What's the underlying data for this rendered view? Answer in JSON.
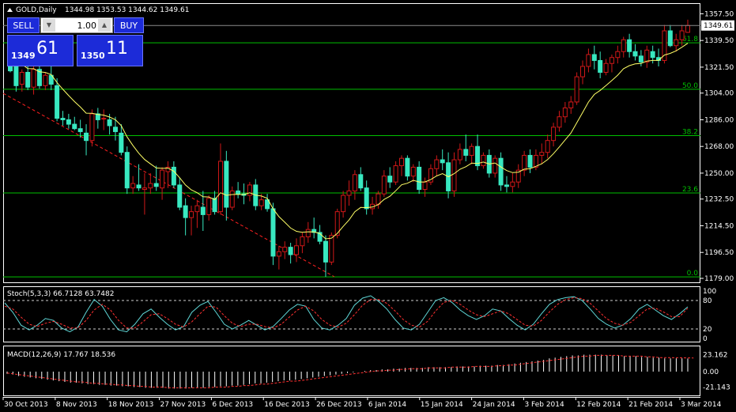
{
  "window": {
    "title_icon": "triangle-up-icon",
    "title": "GOLD,Daily",
    "ohlc": "1344.98 1353.53 1344.62 1349.61"
  },
  "trade_panel": {
    "sell_label": "SELL",
    "buy_label": "BUY",
    "lots": "1.00",
    "down_icon": "arrow-down-icon",
    "up_icon": "arrow-up-icon",
    "bid_small": "1349",
    "bid_big": "61",
    "ask_small": "1350",
    "ask_big": "11"
  },
  "chart_data": [
    {
      "type": "candlestick",
      "title": "GOLD,Daily",
      "price_axis": [
        "1357.50",
        "1339.50",
        "1321.50",
        "1304.00",
        "1286.00",
        "1268.00",
        "1250.00",
        "1232.50",
        "1214.50",
        "1196.50",
        "1179.00"
      ],
      "ylim": [
        1179,
        1362
      ],
      "date_labels": [
        "30 Oct 2013",
        "8 Nov 2013",
        "18 Nov 2013",
        "27 Nov 2013",
        "6 Dec 2013",
        "16 Dec 2013",
        "26 Dec 2013",
        "6 Jan 2014",
        "15 Jan 2014",
        "24 Jan 2014",
        "3 Feb 2014",
        "12 Feb 2014",
        "21 Feb 2014",
        "3 Mar 2014"
      ],
      "last_price": "1349.61",
      "fib_levels": [
        {
          "label": "61.8",
          "value": 1337.9
        },
        {
          "label": "50.0",
          "value": 1306.6
        },
        {
          "label": "38.2",
          "value": 1275.3
        },
        {
          "label": "23.6",
          "value": 1236.6
        },
        {
          "label": "0.0",
          "value": 1180.0
        }
      ],
      "candles": [
        [
          1325,
          1328,
          1318,
          1319
        ],
        [
          1324,
          1326,
          1305,
          1309
        ],
        [
          1310,
          1320,
          1305,
          1318
        ],
        [
          1318,
          1325,
          1306,
          1308
        ],
        [
          1308,
          1322,
          1303,
          1320
        ],
        [
          1320,
          1324,
          1307,
          1309
        ],
        [
          1309,
          1318,
          1306,
          1316
        ],
        [
          1316,
          1328,
          1306,
          1310
        ],
        [
          1309,
          1314,
          1285,
          1287
        ],
        [
          1287,
          1292,
          1282,
          1286
        ],
        [
          1286,
          1290,
          1280,
          1283
        ],
        [
          1283,
          1288,
          1279,
          1280
        ],
        [
          1280,
          1286,
          1274,
          1278
        ],
        [
          1277,
          1283,
          1262,
          1272
        ],
        [
          1272,
          1293,
          1268,
          1290
        ],
        [
          1290,
          1294,
          1280,
          1286
        ],
        [
          1287,
          1293,
          1279,
          1287
        ],
        [
          1286,
          1290,
          1276,
          1282
        ],
        [
          1281,
          1288,
          1272,
          1278
        ],
        [
          1277,
          1283,
          1262,
          1264
        ],
        [
          1264,
          1268,
          1236,
          1240
        ],
        [
          1240,
          1248,
          1236,
          1243
        ],
        [
          1242,
          1256,
          1238,
          1240
        ],
        [
          1239,
          1250,
          1222,
          1240
        ],
        [
          1240,
          1250,
          1236,
          1243
        ],
        [
          1243,
          1255,
          1238,
          1241
        ],
        [
          1240,
          1254,
          1232,
          1252
        ],
        [
          1251,
          1258,
          1240,
          1254
        ],
        [
          1254,
          1258,
          1240,
          1242
        ],
        [
          1242,
          1247,
          1225,
          1227
        ],
        [
          1228,
          1233,
          1208,
          1220
        ],
        [
          1220,
          1228,
          1208,
          1224
        ],
        [
          1224,
          1232,
          1213,
          1228
        ],
        [
          1227,
          1238,
          1211,
          1222
        ],
        [
          1222,
          1235,
          1218,
          1233
        ],
        [
          1233,
          1238,
          1222,
          1224
        ],
        [
          1224,
          1270,
          1222,
          1258
        ],
        [
          1258,
          1265,
          1218,
          1227
        ],
        [
          1227,
          1241,
          1225,
          1238
        ],
        [
          1238,
          1244,
          1233,
          1236
        ],
        [
          1236,
          1243,
          1229,
          1235
        ],
        [
          1235,
          1244,
          1231,
          1242
        ],
        [
          1242,
          1246,
          1225,
          1228
        ],
        [
          1228,
          1236,
          1225,
          1232
        ],
        [
          1232,
          1236,
          1224,
          1226
        ],
        [
          1226,
          1230,
          1188,
          1194
        ],
        [
          1194,
          1201,
          1185,
          1197
        ],
        [
          1197,
          1204,
          1192,
          1200
        ],
        [
          1200,
          1203,
          1189,
          1195
        ],
        [
          1195,
          1206,
          1190,
          1201
        ],
        [
          1201,
          1210,
          1196,
          1207
        ],
        [
          1207,
          1217,
          1203,
          1212
        ],
        [
          1212,
          1220,
          1206,
          1210
        ],
        [
          1210,
          1215,
          1202,
          1204
        ],
        [
          1204,
          1208,
          1180,
          1190
        ],
        [
          1190,
          1210,
          1188,
          1208
        ],
        [
          1208,
          1226,
          1206,
          1224
        ],
        [
          1224,
          1238,
          1220,
          1235
        ],
        [
          1235,
          1245,
          1228,
          1238
        ],
        [
          1238,
          1252,
          1232,
          1249
        ],
        [
          1249,
          1254,
          1238,
          1240
        ],
        [
          1240,
          1245,
          1222,
          1226
        ],
        [
          1226,
          1234,
          1222,
          1229
        ],
        [
          1229,
          1238,
          1226,
          1236
        ],
        [
          1236,
          1252,
          1234,
          1248
        ],
        [
          1248,
          1254,
          1240,
          1244
        ],
        [
          1244,
          1258,
          1242,
          1255
        ],
        [
          1255,
          1262,
          1248,
          1260
        ],
        [
          1260,
          1262,
          1245,
          1248
        ],
        [
          1248,
          1256,
          1244,
          1254
        ],
        [
          1254,
          1258,
          1236,
          1239
        ],
        [
          1239,
          1247,
          1234,
          1244
        ],
        [
          1244,
          1256,
          1242,
          1253
        ],
        [
          1253,
          1262,
          1248,
          1259
        ],
        [
          1259,
          1266,
          1252,
          1257
        ],
        [
          1257,
          1264,
          1233,
          1238
        ],
        [
          1238,
          1264,
          1234,
          1259
        ],
        [
          1259,
          1270,
          1256,
          1266
        ],
        [
          1266,
          1276,
          1258,
          1262
        ],
        [
          1262,
          1270,
          1256,
          1268
        ],
        [
          1268,
          1276,
          1252,
          1255
        ],
        [
          1255,
          1264,
          1253,
          1262
        ],
        [
          1262,
          1266,
          1247,
          1250
        ],
        [
          1250,
          1262,
          1247,
          1260
        ],
        [
          1260,
          1264,
          1238,
          1242
        ],
        [
          1242,
          1248,
          1237,
          1241
        ],
        [
          1241,
          1250,
          1237,
          1244
        ],
        [
          1244,
          1256,
          1240,
          1252
        ],
        [
          1252,
          1265,
          1248,
          1262
        ],
        [
          1262,
          1266,
          1250,
          1254
        ],
        [
          1254,
          1266,
          1252,
          1262
        ],
        [
          1262,
          1270,
          1256,
          1264
        ],
        [
          1264,
          1276,
          1260,
          1272
        ],
        [
          1272,
          1284,
          1268,
          1281
        ],
        [
          1281,
          1292,
          1278,
          1288
        ],
        [
          1288,
          1298,
          1284,
          1294
        ],
        [
          1294,
          1302,
          1290,
          1298
        ],
        [
          1298,
          1318,
          1296,
          1315
        ],
        [
          1315,
          1326,
          1310,
          1322
        ],
        [
          1322,
          1334,
          1318,
          1330
        ],
        [
          1330,
          1336,
          1320,
          1326
        ],
        [
          1326,
          1332,
          1314,
          1318
        ],
        [
          1318,
          1327,
          1316,
          1324
        ],
        [
          1324,
          1330,
          1318,
          1328
        ],
        [
          1328,
          1336,
          1324,
          1332
        ],
        [
          1332,
          1342,
          1328,
          1340
        ],
        [
          1340,
          1344,
          1328,
          1332
        ],
        [
          1332,
          1337,
          1326,
          1329
        ],
        [
          1329,
          1333,
          1322,
          1325
        ],
        [
          1325,
          1336,
          1321,
          1333
        ],
        [
          1332,
          1336,
          1324,
          1328
        ],
        [
          1328,
          1334,
          1322,
          1326
        ],
        [
          1326,
          1350,
          1324,
          1346
        ],
        [
          1346,
          1350,
          1335,
          1336
        ],
        [
          1336,
          1344,
          1332,
          1340
        ],
        [
          1340,
          1350,
          1336,
          1346
        ],
        [
          1344.98,
          1353.53,
          1344.62,
          1349.61
        ]
      ],
      "ma_start": 1330
    },
    {
      "type": "line",
      "title": "Stoch(5,3,3) 66.7128 63.7482",
      "ylim": [
        0,
        100
      ],
      "levels": [
        80,
        20
      ],
      "yticks": [
        "100",
        "80",
        "20",
        "0"
      ],
      "series": [
        {
          "name": "Main",
          "color": "#5fd7d7",
          "values": [
            75,
            55,
            28,
            18,
            28,
            42,
            38,
            22,
            14,
            24,
            55,
            82,
            68,
            40,
            18,
            14,
            30,
            52,
            62,
            45,
            30,
            18,
            25,
            55,
            70,
            78,
            55,
            30,
            20,
            28,
            38,
            28,
            18,
            25,
            42,
            60,
            72,
            68,
            40,
            22,
            18,
            28,
            42,
            70,
            85,
            90,
            78,
            62,
            40,
            22,
            18,
            30,
            55,
            80,
            86,
            76,
            60,
            48,
            40,
            48,
            62,
            58,
            42,
            28,
            18,
            30,
            52,
            72,
            82,
            86,
            88,
            80,
            62,
            42,
            30,
            22,
            28,
            42,
            62,
            72,
            60,
            48,
            40,
            52,
            66.7
          ]
        },
        {
          "name": "Signal",
          "color": "#ff3030",
          "values": [
            68,
            62,
            45,
            30,
            25,
            32,
            36,
            30,
            22,
            22,
            38,
            60,
            72,
            60,
            38,
            22,
            22,
            35,
            50,
            52,
            42,
            30,
            24,
            35,
            52,
            68,
            66,
            48,
            32,
            25,
            30,
            30,
            25,
            22,
            30,
            45,
            60,
            68,
            58,
            40,
            28,
            24,
            32,
            50,
            70,
            82,
            82,
            74,
            58,
            40,
            28,
            24,
            36,
            58,
            76,
            80,
            72,
            60,
            50,
            46,
            52,
            58,
            52,
            40,
            28,
            26,
            38,
            56,
            72,
            82,
            86,
            84,
            74,
            58,
            42,
            32,
            28,
            34,
            48,
            62,
            64,
            56,
            46,
            46,
            63.7
          ]
        }
      ]
    },
    {
      "type": "bar",
      "title": "MACD(12,26,9) 17.767 18.536",
      "ylim": [
        -28,
        30
      ],
      "yticks": [
        "23.162",
        "0.00",
        "-21.143"
      ],
      "series": [
        {
          "name": "MACD",
          "color": "#ffffff",
          "values": [
            -3,
            -4,
            -6,
            -7,
            -8,
            -9,
            -10,
            -11,
            -12,
            -13,
            -14,
            -15,
            -15,
            -16,
            -17,
            -17,
            -18,
            -18,
            -19,
            -19,
            -20,
            -20,
            -21,
            -21,
            -22,
            -22,
            -22,
            -22,
            -23,
            -23,
            -23,
            -23,
            -22,
            -22,
            -22,
            -21,
            -21,
            -20,
            -20,
            -19,
            -19,
            -18,
            -17,
            -16,
            -16,
            -15,
            -14,
            -13,
            -12,
            -12,
            -11,
            -10,
            -9,
            -8,
            -7,
            -6,
            -5,
            -4,
            -3,
            -2,
            -1,
            0,
            1,
            2,
            2,
            3,
            3,
            4,
            4,
            5,
            5,
            5,
            5,
            6,
            6,
            6,
            6,
            6,
            7,
            7,
            7,
            7,
            8,
            8,
            8,
            9,
            9,
            10,
            11,
            12,
            13,
            14,
            15,
            16,
            18,
            19,
            20,
            21,
            22,
            22,
            23,
            23,
            23,
            23,
            22,
            22,
            22,
            21,
            21,
            21,
            20,
            20,
            19,
            19,
            18,
            18,
            18,
            18,
            17.8
          ]
        },
        {
          "name": "Signal",
          "color": "#ff3030",
          "values": [
            -2,
            -3,
            -4,
            -5,
            -6,
            -7,
            -8,
            -9,
            -10,
            -11,
            -12,
            -13,
            -14,
            -14,
            -15,
            -16,
            -16,
            -17,
            -17,
            -18,
            -18,
            -19,
            -19,
            -20,
            -20,
            -21,
            -21,
            -21,
            -22,
            -22,
            -22,
            -22,
            -22,
            -22,
            -22,
            -22,
            -21,
            -21,
            -21,
            -20,
            -20,
            -19,
            -19,
            -18,
            -17,
            -17,
            -16,
            -15,
            -14,
            -13,
            -13,
            -12,
            -11,
            -10,
            -9,
            -8,
            -7,
            -6,
            -5,
            -4,
            -3,
            -2,
            -1,
            0,
            1,
            1,
            2,
            2,
            3,
            3,
            4,
            4,
            4,
            5,
            5,
            5,
            5,
            6,
            6,
            6,
            6,
            7,
            7,
            7,
            7,
            8,
            8,
            9,
            9,
            10,
            11,
            12,
            13,
            14,
            15,
            16,
            17,
            18,
            19,
            20,
            21,
            21,
            22,
            22,
            22,
            22,
            22,
            21,
            21,
            21,
            21,
            20,
            20,
            19,
            19,
            19,
            18.8,
            18.7,
            18.6,
            18.5
          ]
        }
      ]
    }
  ]
}
